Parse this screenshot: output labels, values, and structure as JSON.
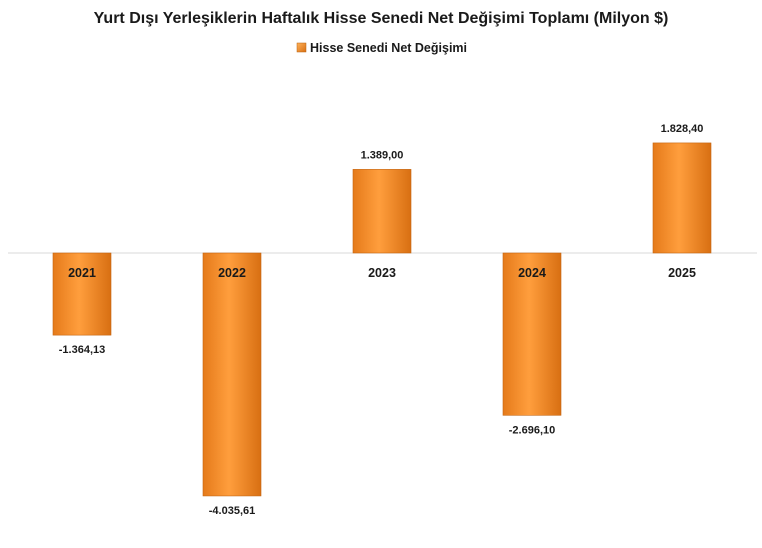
{
  "chart_data": {
    "type": "bar",
    "title": "Yurt Dışı Yerleşiklerin Haftalık Hisse Senedi Net Değişimi Toplamı (Milyon $)",
    "legend_position": "top-center",
    "grid": false,
    "categories": [
      "2021",
      "2022",
      "2023",
      "2024",
      "2025"
    ],
    "series": [
      {
        "name": "Hisse Senedi Net Değişimi",
        "values": [
          -1364.13,
          -4035.61,
          1389.0,
          -2696.1,
          1828.4
        ],
        "value_labels": [
          "-1.364,13",
          "-4.035,61",
          "1.389,00",
          "-2.696,10",
          "1.828,40"
        ],
        "color": "#F7922E"
      }
    ],
    "ylim": [
      -4200,
      2000
    ],
    "xlabel": "",
    "ylabel": ""
  }
}
